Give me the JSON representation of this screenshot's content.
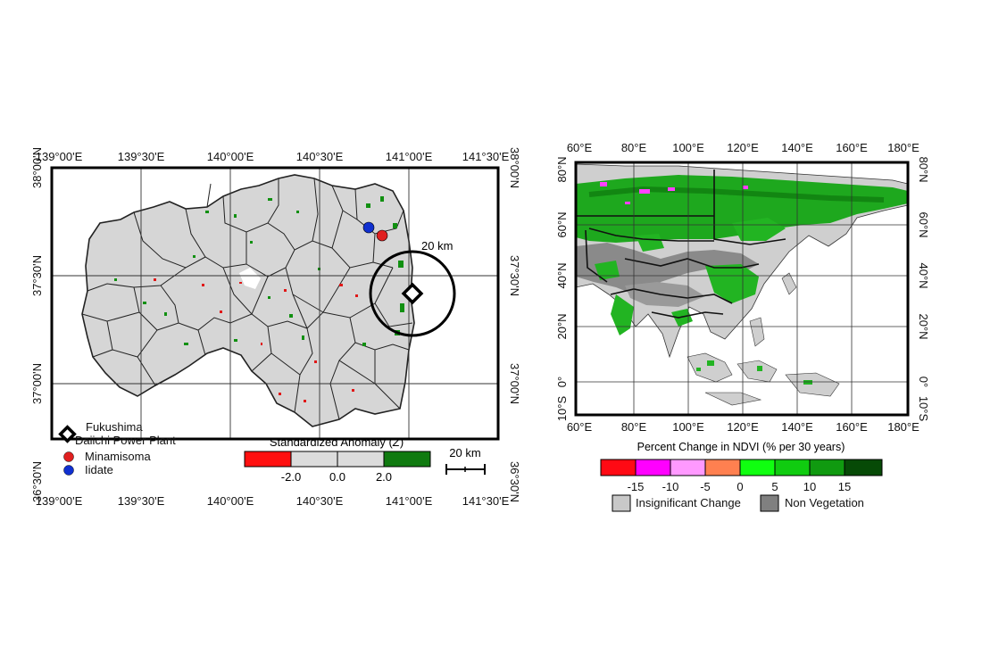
{
  "left_map": {
    "top_lon_labels": [
      "139°00'E",
      "139°30'E",
      "140°00'E",
      "140°30'E",
      "141°00'E",
      "141°30'E"
    ],
    "bottom_lon_labels": [
      "139°00'E",
      "139°30'E",
      "140°00'E",
      "140°30'E",
      "141°00'E",
      "141°30'E"
    ],
    "left_lat_labels": [
      "38°00'N",
      "37°30'N",
      "37°00'N",
      "36°30'N"
    ],
    "right_lat_labels": [
      "38°00'N",
      "37°30'N",
      "37°00'N",
      "36°30'N"
    ],
    "ring_label": "20 km",
    "legend": {
      "items": [
        {
          "label_line1": "Fukushima",
          "label_line2": "Daiichi Power Plant",
          "symbol": "diamond-icon"
        },
        {
          "label_line1": "Minamisoma",
          "symbol": "red-dot",
          "color": "#e02020"
        },
        {
          "label_line1": "Iidate",
          "symbol": "blue-dot",
          "color": "#1030d0"
        }
      ]
    },
    "anomaly_bar": {
      "title": "Standardized Anomaly (",
      "title_var": "Z",
      "title_end": ")",
      "ticks": [
        "-2.0",
        "0.0",
        "2.0"
      ],
      "colors": [
        "#ff1010",
        "#dcdcdc",
        "#dcdcdc",
        "#107a10"
      ]
    },
    "scale_bar": {
      "label": "20 km"
    }
  },
  "right_map": {
    "top_lon_labels": [
      "60°E",
      "80°E",
      "100°E",
      "120°E",
      "140°E",
      "160°E",
      "180°E"
    ],
    "bottom_lon_labels": [
      "60°E",
      "80°E",
      "100°E",
      "120°E",
      "140°E",
      "160°E",
      "180°E"
    ],
    "left_lat_labels": [
      "80°N",
      "60°N",
      "40°N",
      "20°N",
      "0°",
      "10°S"
    ],
    "right_lat_labels": [
      "80°N",
      "60°N",
      "40°N",
      "20°N",
      "0°",
      "10°S"
    ],
    "ndvi_bar": {
      "title": "Percent Change in NDVI (% per 30 years)",
      "colors": [
        "#ff0a14",
        "#ff00ff",
        "#ff99ff",
        "#ff8050",
        "#10ff10",
        "#10cc10",
        "#109a10",
        "#0a6a0a",
        "#064a06"
      ],
      "ticks": [
        "-15",
        "-10",
        "-5",
        "0",
        "5",
        "10",
        "15"
      ]
    },
    "legend": {
      "insignificant": {
        "label": "Insignificant Change",
        "color": "#c8c8c8"
      },
      "non_vegetation": {
        "label": "Non Vegetation",
        "color": "#808080"
      }
    }
  }
}
